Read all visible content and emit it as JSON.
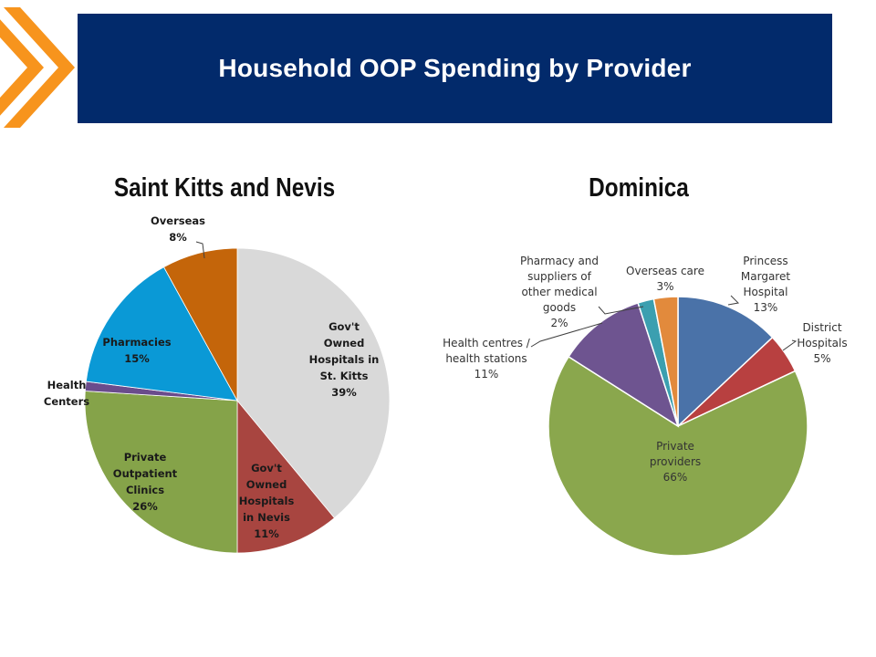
{
  "header": {
    "title": "Household OOP Spending by Provider",
    "background": "#022a6b"
  },
  "decor": {
    "chevron_color": "#f7941d",
    "chevron_icon": "double-chevron-right-icon"
  },
  "chart_data": [
    {
      "type": "pie",
      "title": "Saint Kitts and Nevis",
      "start": "12 o'clock, clockwise",
      "slices": [
        {
          "lines": [
            "Gov't",
            "Owned",
            "Hospitals in",
            "St. Kitts",
            "39%"
          ],
          "value": 39,
          "color": "#d9d9d9"
        },
        {
          "lines": [
            "Gov't",
            "Owned",
            "Hospitals",
            "in Nevis",
            "11%"
          ],
          "value": 11,
          "color": "#a84540"
        },
        {
          "lines": [
            "Private",
            "Outpatient",
            "Clinics",
            "26%"
          ],
          "value": 26,
          "color": "#85a349"
        },
        {
          "lines": [
            "Health",
            "Centers"
          ],
          "value": 1,
          "color": "#6a4c8c"
        },
        {
          "lines": [
            "Pharmacies",
            "15%"
          ],
          "value": 15,
          "color": "#0a99d6"
        },
        {
          "lines": [
            "Overseas",
            "8%"
          ],
          "value": 8,
          "color": "#c4650a"
        }
      ]
    },
    {
      "type": "pie",
      "title": "Dominica",
      "start": "12 o'clock, clockwise",
      "slices": [
        {
          "lines": [
            "Princess",
            "Margaret",
            "Hospital",
            "13%"
          ],
          "value": 13,
          "color": "#4a72a8"
        },
        {
          "lines": [
            "District",
            "Hospitals",
            "5%"
          ],
          "value": 5,
          "color": "#b84040"
        },
        {
          "lines": [
            "Private",
            "providers",
            "66%"
          ],
          "value": 66,
          "color": "#8aa74d"
        },
        {
          "lines": [
            "Health centres /",
            "health stations",
            "11%"
          ],
          "value": 11,
          "color": "#6e5490"
        },
        {
          "lines": [
            "Pharmacy and",
            "suppliers of",
            "other medical",
            "goods",
            "2%"
          ],
          "value": 2,
          "color": "#3b9fb0"
        },
        {
          "lines": [
            "Overseas care",
            "3%"
          ],
          "value": 3,
          "color": "#e28a3c"
        }
      ]
    }
  ]
}
